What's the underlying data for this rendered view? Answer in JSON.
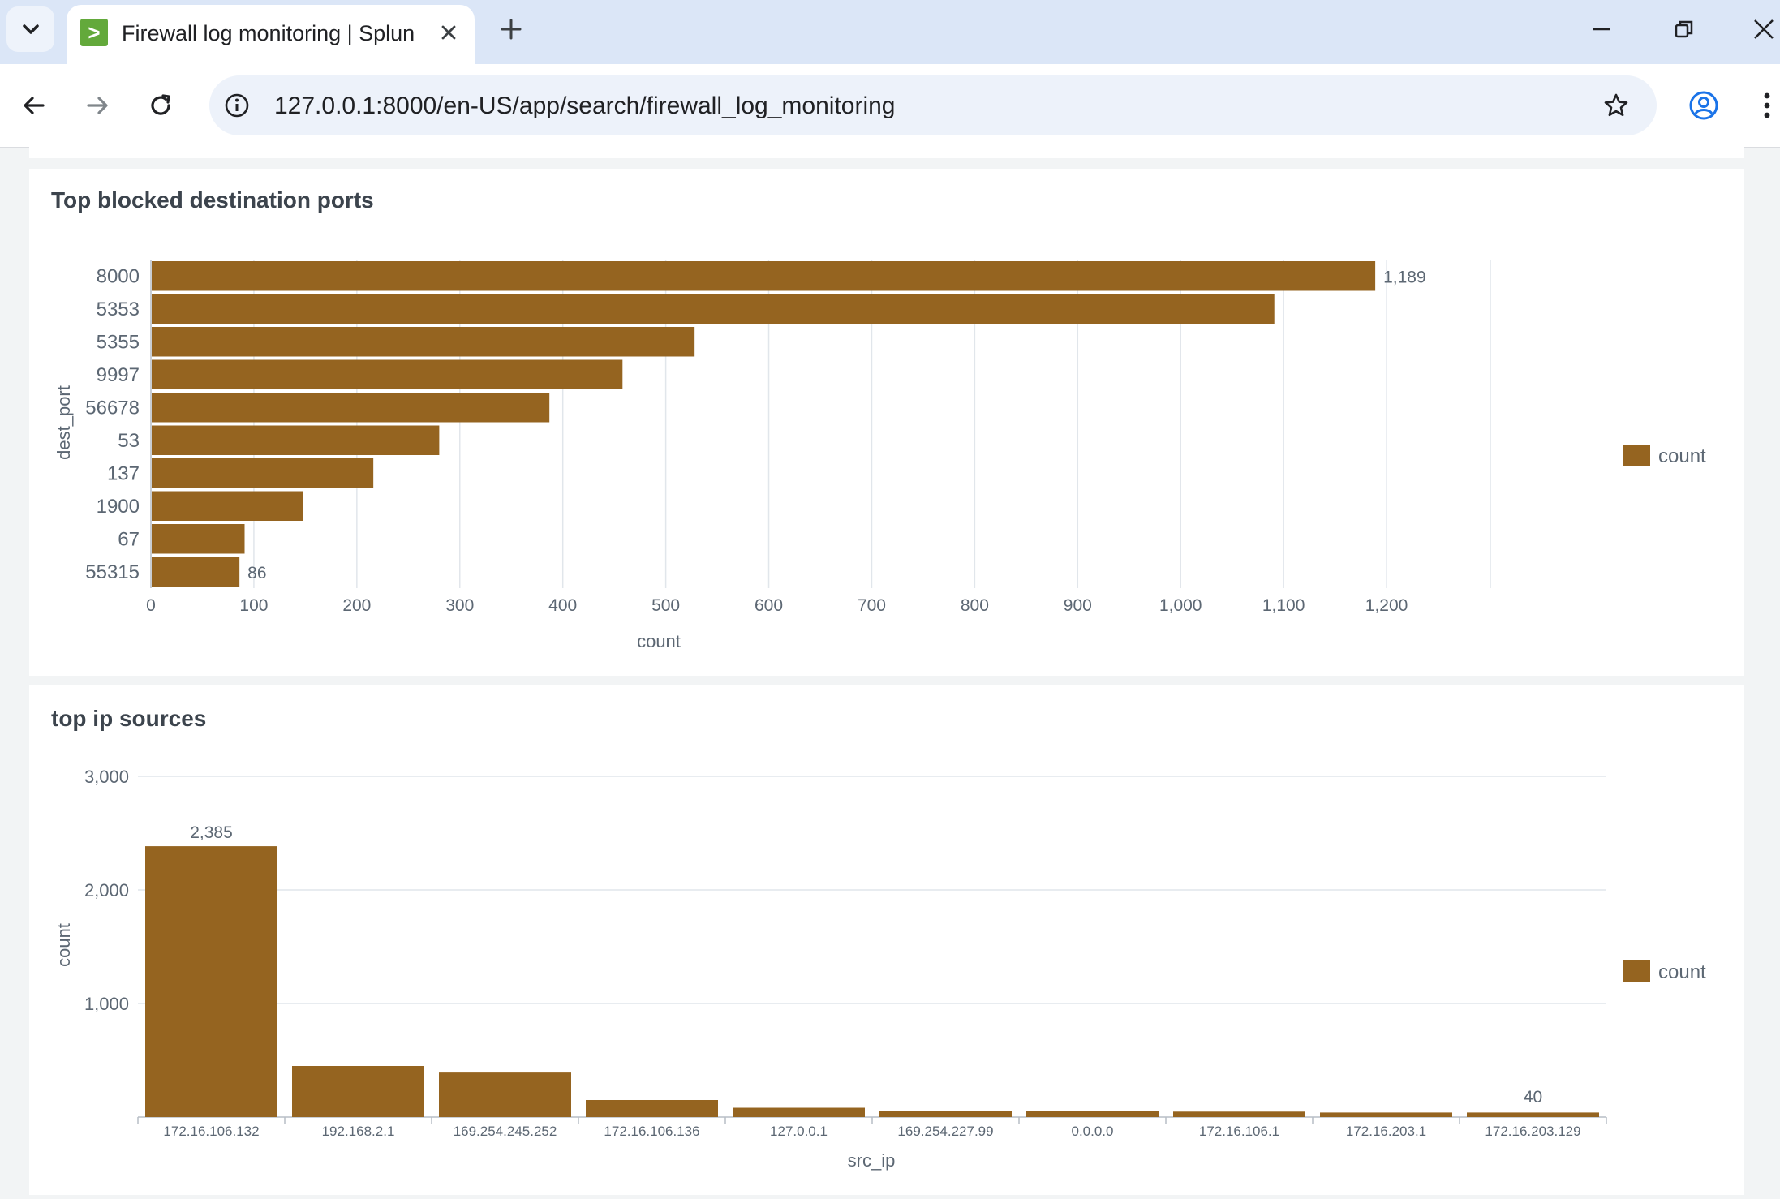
{
  "browser": {
    "tab": {
      "title": "Firewall log monitoring | Splunk",
      "favicon": ">"
    },
    "url": "127.0.0.1:8000/en-US/app/search/firewall_log_monitoring"
  },
  "panels": [
    {
      "title": "Top blocked destination ports"
    },
    {
      "title": "top ip sources"
    }
  ],
  "chart_data": [
    {
      "type": "bar",
      "orientation": "horizontal",
      "title": "Top blocked destination ports",
      "xlabel": "count",
      "ylabel": "dest_port",
      "categories": [
        "8000",
        "5353",
        "5355",
        "9997",
        "56678",
        "53",
        "137",
        "1900",
        "67",
        "55315"
      ],
      "series": [
        {
          "name": "count",
          "values": [
            1189,
            1091,
            528,
            458,
            387,
            280,
            216,
            148,
            91,
            86
          ],
          "color": "#956420"
        }
      ],
      "xlim": [
        0,
        1300
      ],
      "xticks": [
        "0",
        "100",
        "200",
        "300",
        "400",
        "500",
        "600",
        "700",
        "800",
        "900",
        "1,000",
        "1,100",
        "1,200"
      ],
      "data_labels": {
        "8000": "1,189",
        "55315": "86"
      },
      "grid": "vertical",
      "legend": "right"
    },
    {
      "type": "bar",
      "orientation": "vertical",
      "title": "top ip sources",
      "xlabel": "src_ip",
      "ylabel": "count",
      "categories": [
        "172.16.106.132",
        "192.168.2.1",
        "169.254.245.252",
        "172.16.106.136",
        "127.0.0.1",
        "169.254.227.99",
        "0.0.0.0",
        "172.16.106.1",
        "172.16.203.1",
        "172.16.203.129"
      ],
      "series": [
        {
          "name": "count",
          "values": [
            2385,
            450,
            392,
            150,
            82,
            52,
            50,
            48,
            40,
            40
          ],
          "color": "#956420"
        }
      ],
      "ylim": [
        0,
        3000
      ],
      "yticks": [
        "1,000",
        "2,000",
        "3,000"
      ],
      "data_labels": {
        "172.16.106.132": "2,385",
        "172.16.203.129": "40"
      },
      "grid": "horizontal",
      "legend": "right"
    }
  ]
}
